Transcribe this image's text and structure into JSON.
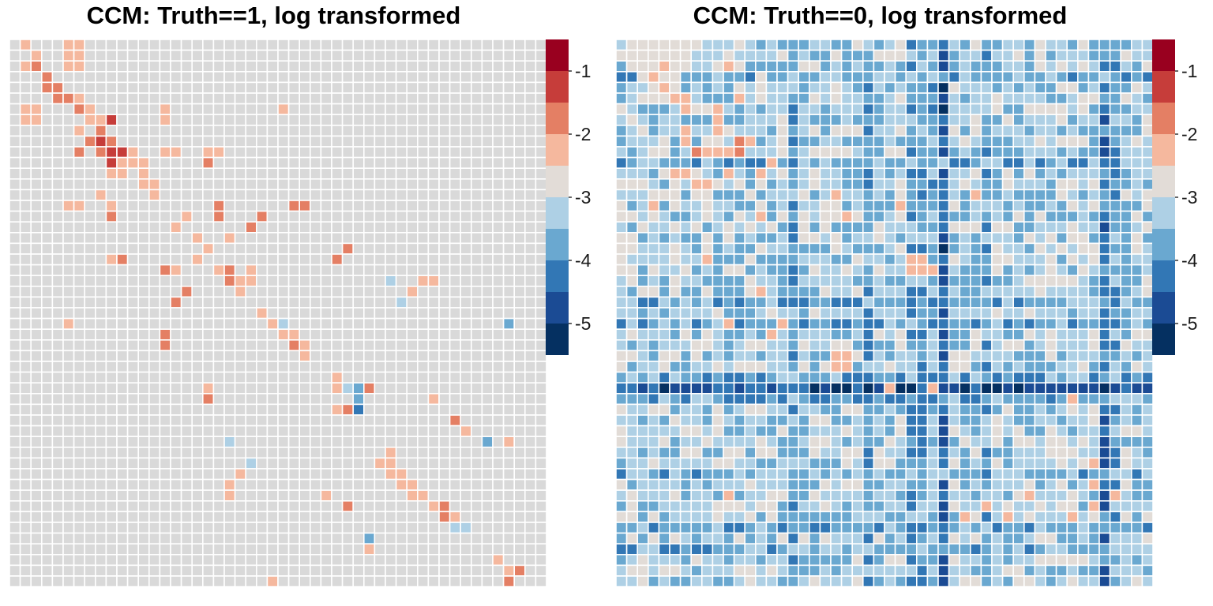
{
  "palette": {
    "bins": [
      {
        "lo": -5.5,
        "hi": -5.0,
        "color": "#053061"
      },
      {
        "lo": -5.0,
        "hi": -4.5,
        "color": "#1b4b94"
      },
      {
        "lo": -4.5,
        "hi": -4.0,
        "color": "#3277b5"
      },
      {
        "lo": -4.0,
        "hi": -3.5,
        "color": "#6aa8d0"
      },
      {
        "lo": -3.5,
        "hi": -3.0,
        "color": "#aed0e5"
      },
      {
        "lo": -3.0,
        "hi": -2.5,
        "color": "#e2dcd7"
      },
      {
        "lo": -2.5,
        "hi": -2.0,
        "color": "#f5b89e"
      },
      {
        "lo": -2.0,
        "hi": -1.5,
        "color": "#e47f64"
      },
      {
        "lo": -1.5,
        "hi": -1.0,
        "color": "#c63d3a"
      },
      {
        "lo": -1.0,
        "hi": -0.5,
        "color": "#99001f"
      }
    ],
    "na_color": "#d9d9d9",
    "grid_color": "#ffffff"
  },
  "chart_data": [
    {
      "type": "heatmap",
      "title": "CCM: Truth==1, log transformed",
      "n": 50,
      "legend": {
        "ticks": [
          -1,
          -2,
          -3,
          -4,
          -5
        ],
        "tick_labels": [
          "-1",
          "-2",
          "-3",
          "-4",
          "-5"
        ],
        "range": [
          -5.5,
          -0.5
        ]
      },
      "fill_default": "NA",
      "cells": [
        [
          0,
          1,
          -2.2
        ],
        [
          1,
          2,
          -2.2
        ],
        [
          1,
          5,
          -2.2
        ],
        [
          1,
          6,
          -2.2
        ],
        [
          0,
          5,
          -2.2
        ],
        [
          0,
          6,
          -2.2
        ],
        [
          2,
          1,
          -2.2
        ],
        [
          2,
          5,
          -2.2
        ],
        [
          2,
          6,
          -2.2
        ],
        [
          2,
          2,
          -1.8
        ],
        [
          3,
          3,
          -1.8
        ],
        [
          4,
          3,
          -1.8
        ],
        [
          4,
          4,
          -1.8
        ],
        [
          5,
          4,
          -1.8
        ],
        [
          5,
          5,
          -1.8
        ],
        [
          6,
          6,
          -1.8
        ],
        [
          5,
          6,
          -2.2
        ],
        [
          6,
          1,
          -2.2
        ],
        [
          6,
          2,
          -2.2
        ],
        [
          7,
          1,
          -2.2
        ],
        [
          7,
          2,
          -2.2
        ],
        [
          6,
          7,
          -2.2
        ],
        [
          7,
          7,
          -2.2
        ],
        [
          7,
          8,
          -2.2
        ],
        [
          6,
          14,
          -2.2
        ],
        [
          6,
          25,
          -2.2
        ],
        [
          7,
          14,
          -2.2
        ],
        [
          7,
          9,
          -1.3
        ],
        [
          8,
          6,
          -2.2
        ],
        [
          8,
          8,
          -1.8
        ],
        [
          9,
          7,
          -1.8
        ],
        [
          9,
          8,
          -1.3
        ],
        [
          9,
          9,
          -1.8
        ],
        [
          10,
          6,
          -1.8
        ],
        [
          10,
          8,
          -1.8
        ],
        [
          10,
          9,
          -1.3
        ],
        [
          10,
          10,
          -1.3
        ],
        [
          10,
          11,
          -2.2
        ],
        [
          10,
          14,
          -2.2
        ],
        [
          10,
          15,
          -2.2
        ],
        [
          10,
          18,
          -2.2
        ],
        [
          10,
          19,
          -2.2
        ],
        [
          11,
          9,
          -1.3
        ],
        [
          11,
          10,
          -2.2
        ],
        [
          11,
          11,
          -2.2
        ],
        [
          11,
          12,
          -2.2
        ],
        [
          11,
          18,
          -1.8
        ],
        [
          12,
          9,
          -2.2
        ],
        [
          12,
          10,
          -2.2
        ],
        [
          12,
          12,
          -2.2
        ],
        [
          13,
          12,
          -2.2
        ],
        [
          13,
          13,
          -2.2
        ],
        [
          14,
          8,
          -2.2
        ],
        [
          14,
          13,
          -2.2
        ],
        [
          15,
          5,
          -2.2
        ],
        [
          15,
          6,
          -2.2
        ],
        [
          15,
          9,
          -2.2
        ],
        [
          15,
          26,
          -1.8
        ],
        [
          15,
          27,
          -1.8
        ],
        [
          15,
          19,
          -1.8
        ],
        [
          16,
          9,
          -1.8
        ],
        [
          16,
          16,
          -2.2
        ],
        [
          16,
          19,
          -1.8
        ],
        [
          16,
          23,
          -1.8
        ],
        [
          17,
          15,
          -2.2
        ],
        [
          17,
          22,
          -1.8
        ],
        [
          18,
          17,
          -2.2
        ],
        [
          18,
          20,
          -2.2
        ],
        [
          19,
          18,
          -2.2
        ],
        [
          19,
          31,
          -1.8
        ],
        [
          20,
          9,
          -2.2
        ],
        [
          20,
          10,
          -1.8
        ],
        [
          20,
          17,
          -2.2
        ],
        [
          20,
          30,
          -1.8
        ],
        [
          21,
          14,
          -1.8
        ],
        [
          21,
          15,
          -2.2
        ],
        [
          21,
          19,
          -2.2
        ],
        [
          21,
          20,
          -1.8
        ],
        [
          21,
          22,
          -2.2
        ],
        [
          22,
          20,
          -1.8
        ],
        [
          22,
          21,
          -2.2
        ],
        [
          22,
          22,
          -2.2
        ],
        [
          22,
          35,
          -3.2
        ],
        [
          22,
          38,
          -2.2
        ],
        [
          22,
          39,
          -2.2
        ],
        [
          23,
          16,
          -1.8
        ],
        [
          23,
          21,
          -2.2
        ],
        [
          23,
          37,
          -2.2
        ],
        [
          24,
          15,
          -1.8
        ],
        [
          24,
          36,
          -3.2
        ],
        [
          25,
          23,
          -2.2
        ],
        [
          26,
          5,
          -2.2
        ],
        [
          26,
          24,
          -2.2
        ],
        [
          26,
          25,
          -3.2
        ],
        [
          26,
          46,
          -3.8
        ],
        [
          27,
          14,
          -1.8
        ],
        [
          27,
          25,
          -2.2
        ],
        [
          27,
          26,
          -2.2
        ],
        [
          28,
          14,
          -1.8
        ],
        [
          28,
          26,
          -1.8
        ],
        [
          28,
          27,
          -2.2
        ],
        [
          29,
          27,
          -2.2
        ],
        [
          31,
          30,
          -2.2
        ],
        [
          32,
          18,
          -2.2
        ],
        [
          32,
          30,
          -2.2
        ],
        [
          32,
          31,
          -3.2
        ],
        [
          32,
          32,
          -3.8
        ],
        [
          32,
          33,
          -1.8
        ],
        [
          33,
          18,
          -1.8
        ],
        [
          33,
          32,
          -3.8
        ],
        [
          33,
          39,
          -2.2
        ],
        [
          34,
          30,
          -2.2
        ],
        [
          34,
          31,
          -1.8
        ],
        [
          34,
          32,
          -4.2
        ],
        [
          35,
          41,
          -1.8
        ],
        [
          36,
          42,
          -2.2
        ],
        [
          37,
          20,
          -3.2
        ],
        [
          37,
          44,
          -3.8
        ],
        [
          37,
          46,
          -2.2
        ],
        [
          38,
          35,
          -2.2
        ],
        [
          39,
          22,
          -3.2
        ],
        [
          39,
          34,
          -2.2
        ],
        [
          39,
          35,
          -2.2
        ],
        [
          40,
          21,
          -2.2
        ],
        [
          40,
          35,
          -2.2
        ],
        [
          40,
          36,
          -2.2
        ],
        [
          41,
          20,
          -2.2
        ],
        [
          41,
          36,
          -2.2
        ],
        [
          41,
          37,
          -2.2
        ],
        [
          42,
          20,
          -2.2
        ],
        [
          42,
          29,
          -2.2
        ],
        [
          42,
          37,
          -2.2
        ],
        [
          42,
          38,
          -2.2
        ],
        [
          43,
          31,
          -1.8
        ],
        [
          43,
          39,
          -2.2
        ],
        [
          43,
          40,
          -1.8
        ],
        [
          44,
          40,
          -1.8
        ],
        [
          44,
          41,
          -2.2
        ],
        [
          45,
          41,
          -3.2
        ],
        [
          45,
          42,
          -3.2
        ],
        [
          46,
          33,
          -3.8
        ],
        [
          47,
          33,
          -2.2
        ],
        [
          48,
          45,
          -2.2
        ],
        [
          49,
          46,
          -2.2
        ],
        [
          49,
          47,
          -1.8
        ],
        [
          50,
          46,
          -1.8
        ],
        [
          50,
          24,
          -2.2
        ]
      ]
    },
    {
      "type": "heatmap",
      "title": "CCM: Truth==0, log transformed",
      "n": 50,
      "legend": {
        "ticks": [
          -1,
          -2,
          -3,
          -4,
          -5
        ],
        "tick_labels": [
          "-1",
          "-2",
          "-3",
          "-4",
          "-5"
        ],
        "range": [
          -5.5,
          -0.5
        ]
      },
      "fill_default": -3.25,
      "col_values": {
        "16": -3.8,
        "23": -3.8,
        "27": -3.8,
        "28": -3.8,
        "29": -3.6,
        "30": -4.6,
        "34": -3.8,
        "45": -4.2,
        "46": -3.8
      },
      "row_values": {
        "32": -4.7,
        "3": -3.8,
        "11": -3.8,
        "24": -3.8,
        "26": -3.8,
        "31": -3.8,
        "33": -3.8,
        "40": -3.6,
        "45": -3.8,
        "47": -3.6
      },
      "cells": [
        [
          0,
          1,
          -2.8
        ],
        [
          0,
          2,
          -2.8
        ],
        [
          0,
          4,
          -2.8
        ],
        [
          0,
          3,
          -2.8
        ],
        [
          0,
          5,
          -2.8
        ],
        [
          0,
          6,
          -2.8
        ],
        [
          1,
          1,
          -2.8
        ],
        [
          1,
          2,
          -2.8
        ],
        [
          1,
          3,
          -2.8
        ],
        [
          1,
          4,
          -2.8
        ],
        [
          1,
          5,
          -2.8
        ],
        [
          1,
          6,
          -2.8
        ],
        [
          1,
          3,
          -2.8
        ],
        [
          2,
          1,
          -2.8
        ],
        [
          2,
          2,
          -2.8
        ],
        [
          2,
          3,
          -2.8
        ],
        [
          2,
          4,
          -2.8
        ],
        [
          2,
          5,
          -2.8
        ],
        [
          2,
          6,
          -2.8
        ],
        [
          3,
          2,
          -2.8
        ],
        [
          3,
          3,
          -2.8
        ],
        [
          3,
          4,
          -2.8
        ],
        [
          3,
          5,
          -2.8
        ],
        [
          1,
          12,
          -3.2
        ],
        [
          5,
          2,
          -2.8
        ],
        [
          5,
          4,
          -2.8
        ],
        [
          5,
          5,
          -2.8
        ],
        [
          2,
          4,
          -2.2
        ],
        [
          2,
          5,
          -2.8
        ],
        [
          3,
          3,
          -2.2
        ],
        [
          3,
          4,
          -2.8
        ],
        [
          4,
          3,
          -2.8
        ],
        [
          4,
          4,
          -2.2
        ],
        [
          4,
          5,
          -2.8
        ],
        [
          5,
          3,
          -2.8
        ],
        [
          5,
          4,
          -2.8
        ],
        [
          5,
          5,
          -2.2
        ],
        [
          5,
          6,
          -2.2
        ],
        [
          6,
          9,
          -2.2
        ],
        [
          7,
          9,
          -1.8
        ],
        [
          8,
          9,
          -2.2
        ],
        [
          8,
          10,
          -2.8
        ],
        [
          9,
          11,
          -1.8
        ],
        [
          9,
          12,
          -2.2
        ],
        [
          9,
          6,
          -2.2
        ],
        [
          10,
          7,
          -1.8
        ],
        [
          10,
          8,
          -2.2
        ],
        [
          10,
          9,
          -2.2
        ],
        [
          10,
          10,
          -2.2
        ],
        [
          10,
          11,
          -1.8
        ],
        [
          5,
          11,
          -2.2
        ],
        [
          7,
          9,
          -2.2
        ],
        [
          8,
          6,
          -2.2
        ],
        [
          6,
          6,
          -2.2
        ],
        [
          3,
          13,
          -2.8
        ],
        [
          2,
          10,
          -2.2
        ],
        [
          12,
          5,
          -2.2
        ],
        [
          13,
          8,
          -2.2
        ],
        [
          13,
          7,
          -2.2
        ],
        [
          12,
          6,
          -2.2
        ],
        [
          12,
          10,
          -2.2
        ],
        [
          12,
          13,
          -2.2
        ],
        [
          15,
          3,
          -2.2
        ],
        [
          14,
          20,
          -2.2
        ],
        [
          16,
          13,
          -2.2
        ],
        [
          16,
          21,
          -2.2
        ],
        [
          15,
          26,
          -2.2
        ],
        [
          20,
          8,
          -2.2
        ],
        [
          20,
          27,
          -2.2
        ],
        [
          20,
          28,
          -2.2
        ],
        [
          21,
          27,
          -2.2
        ],
        [
          21,
          28,
          -2.2
        ],
        [
          21,
          29,
          -2.2
        ],
        [
          26,
          10,
          -2.2
        ],
        [
          27,
          14,
          -2.2
        ],
        [
          26,
          15,
          -2.2
        ],
        [
          29,
          20,
          -2.2
        ],
        [
          30,
          20,
          -2.2
        ],
        [
          29,
          21,
          -2.2
        ],
        [
          30,
          21,
          -2.2
        ],
        [
          32,
          25,
          -2.2
        ],
        [
          32,
          29,
          -2.2
        ],
        [
          43,
          44,
          -2.2
        ],
        [
          44,
          32,
          -2.2
        ],
        [
          44,
          36,
          -2.2
        ],
        [
          44,
          42,
          -2.2
        ],
        [
          43,
          34,
          -2.2
        ],
        [
          42,
          38,
          -2.2
        ],
        [
          39,
          44,
          -2.2
        ],
        [
          41,
          44,
          -2.2
        ],
        [
          42,
          46,
          -2.2
        ],
        [
          42,
          10,
          -2.2
        ],
        [
          33,
          42,
          -2.2
        ],
        [
          14,
          33,
          -2.2
        ],
        [
          23,
          13,
          -2.2
        ],
        [
          11,
          14,
          -2.2
        ]
      ]
    }
  ]
}
